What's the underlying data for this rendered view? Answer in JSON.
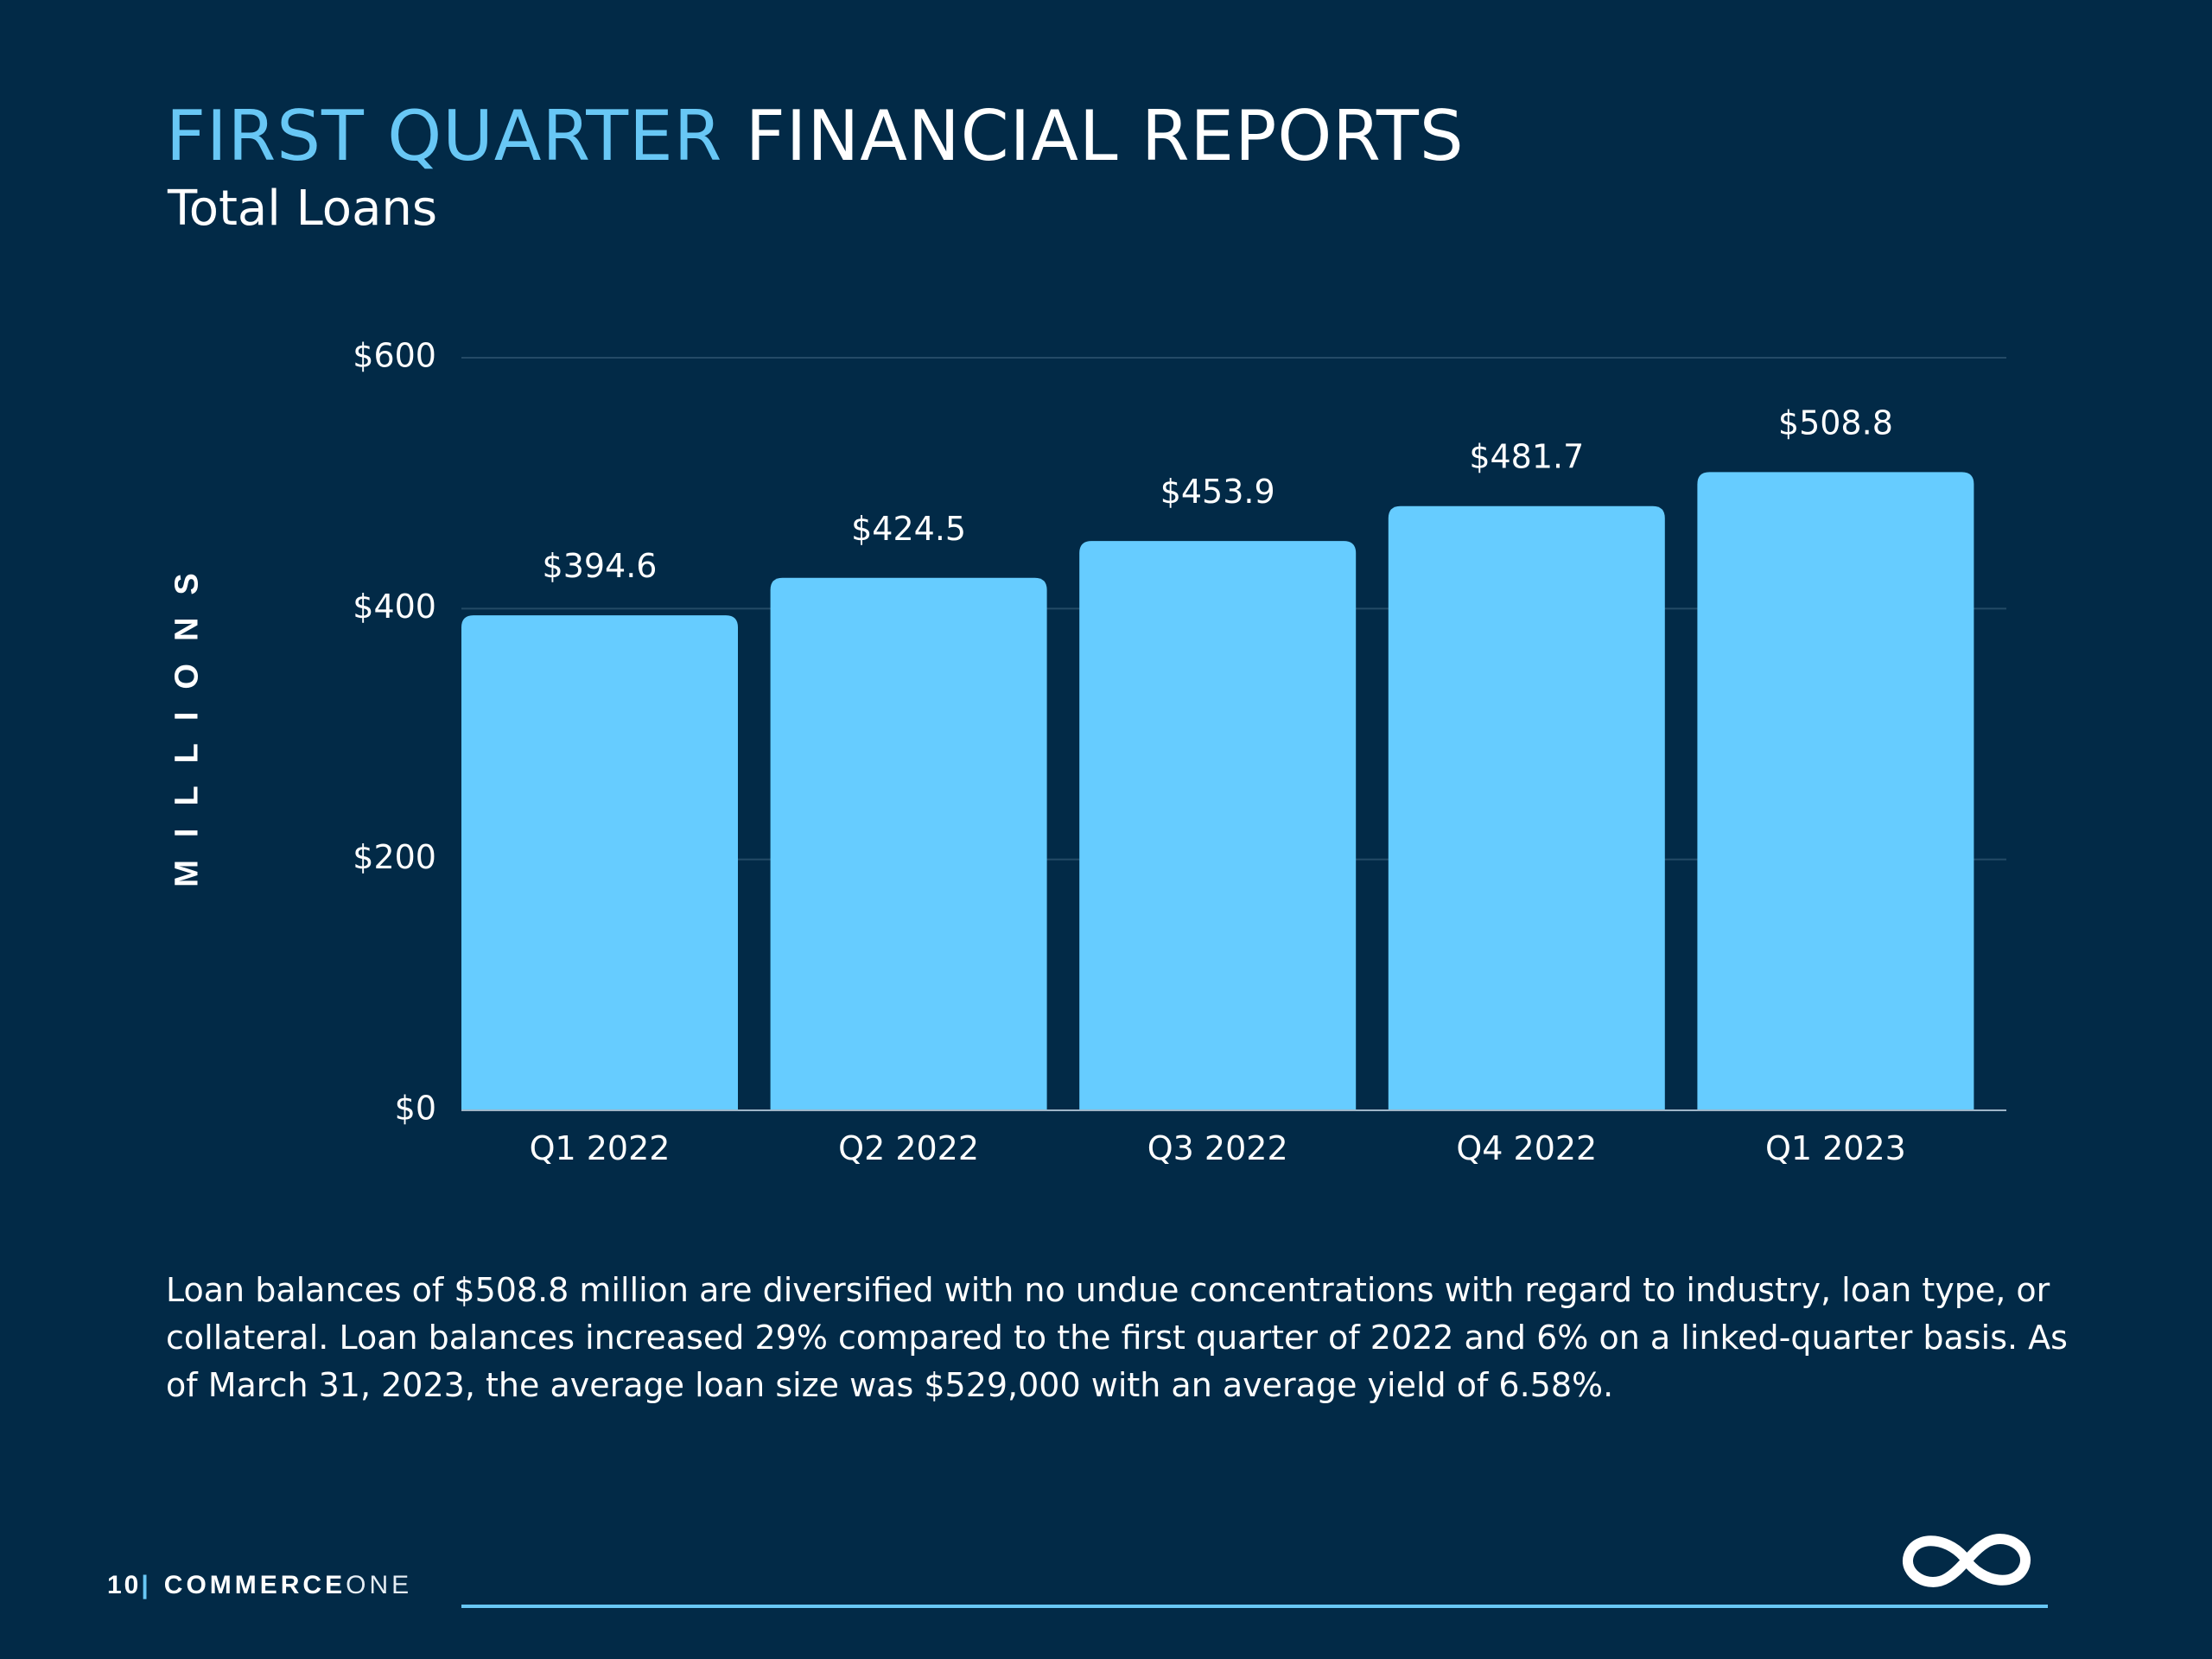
{
  "header": {
    "title_accent": "FIRST QUARTER",
    "title_rest": "FINANCIAL REPORTS",
    "subtitle": "Total Loans"
  },
  "colors": {
    "background": "#022a47",
    "accent": "#68c7f5",
    "bar": "#66ccff",
    "grid": "#244a66",
    "text": "#ffffff"
  },
  "chart_data": {
    "type": "bar",
    "title": "Total Loans",
    "xlabel": "",
    "ylabel": "MILLIONS",
    "categories": [
      "Q1 2022",
      "Q2 2022",
      "Q3 2022",
      "Q4 2022",
      "Q1 2023"
    ],
    "values": [
      394.6,
      424.5,
      453.9,
      481.7,
      508.8
    ],
    "data_labels": [
      "$394.6",
      "$424.5",
      "$453.9",
      "$481.7",
      "$508.8"
    ],
    "ylim": [
      0,
      600
    ],
    "yticks": [
      0,
      200,
      400,
      600
    ],
    "ytick_labels": [
      "$0",
      "$200",
      "$400",
      "$600"
    ],
    "grid": true,
    "legend": "none"
  },
  "description": "Loan balances of $508.8 million are diversified with no undue concentrations with regard to industry, loan type, or collateral. Loan balances increased 29% compared to the first quarter of 2022 and 6% on a linked-quarter basis. As of March 31, 2023, the average loan size was $529,000 with an average yield of 6.58%.",
  "footer": {
    "page_number": "10",
    "separator": "|",
    "brand_bold": "COMMERCE",
    "brand_light": "ONE"
  },
  "logo": {
    "icon": "infinity-icon"
  }
}
